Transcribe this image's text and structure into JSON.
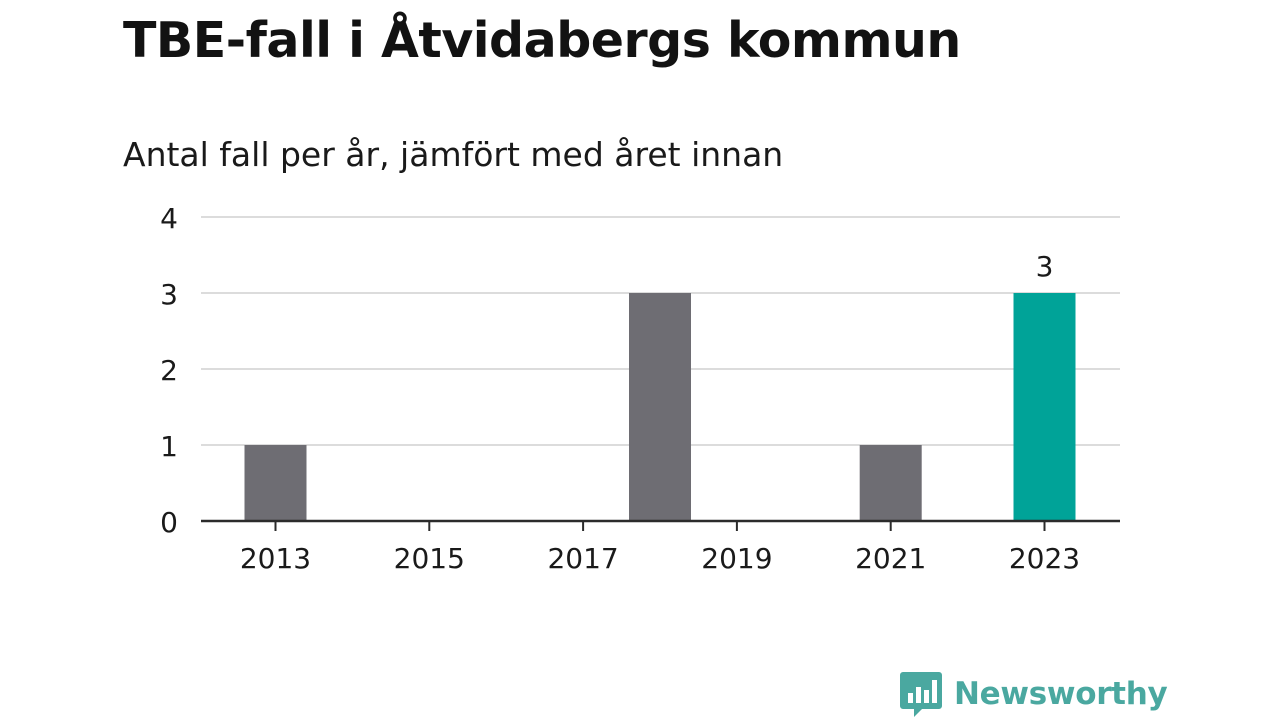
{
  "chart_data": {
    "type": "bar",
    "title": "TBE-fall i Åtvidabergs kommun",
    "subtitle": "Antal fall per år, jämfört med året innan",
    "categories": [
      "2013",
      "2014",
      "2015",
      "2016",
      "2017",
      "2018",
      "2019",
      "2020",
      "2021",
      "2022",
      "2023"
    ],
    "values": [
      1,
      0,
      0,
      0,
      0,
      3,
      0,
      0,
      1,
      0,
      3
    ],
    "highlight_category": "2023",
    "highlight_label": "3",
    "ylim": [
      0,
      4
    ],
    "yticks": [
      "0",
      "1",
      "2",
      "3",
      "4"
    ],
    "xticks": [
      "2013",
      "2015",
      "2017",
      "2019",
      "2021",
      "2023"
    ],
    "xlabel": "",
    "ylabel": "",
    "grid": true,
    "colors": {
      "bar": "#6e6d73",
      "highlight": "#00a398",
      "grid": "#dcdcdc",
      "axis": "#2b2b2b",
      "text": "#1a1a1a"
    }
  },
  "branding": {
    "logo_text": "Newsworthy",
    "logo_icon": "bar-chart-speech-bubble-icon",
    "color": "#4aa8a0"
  }
}
